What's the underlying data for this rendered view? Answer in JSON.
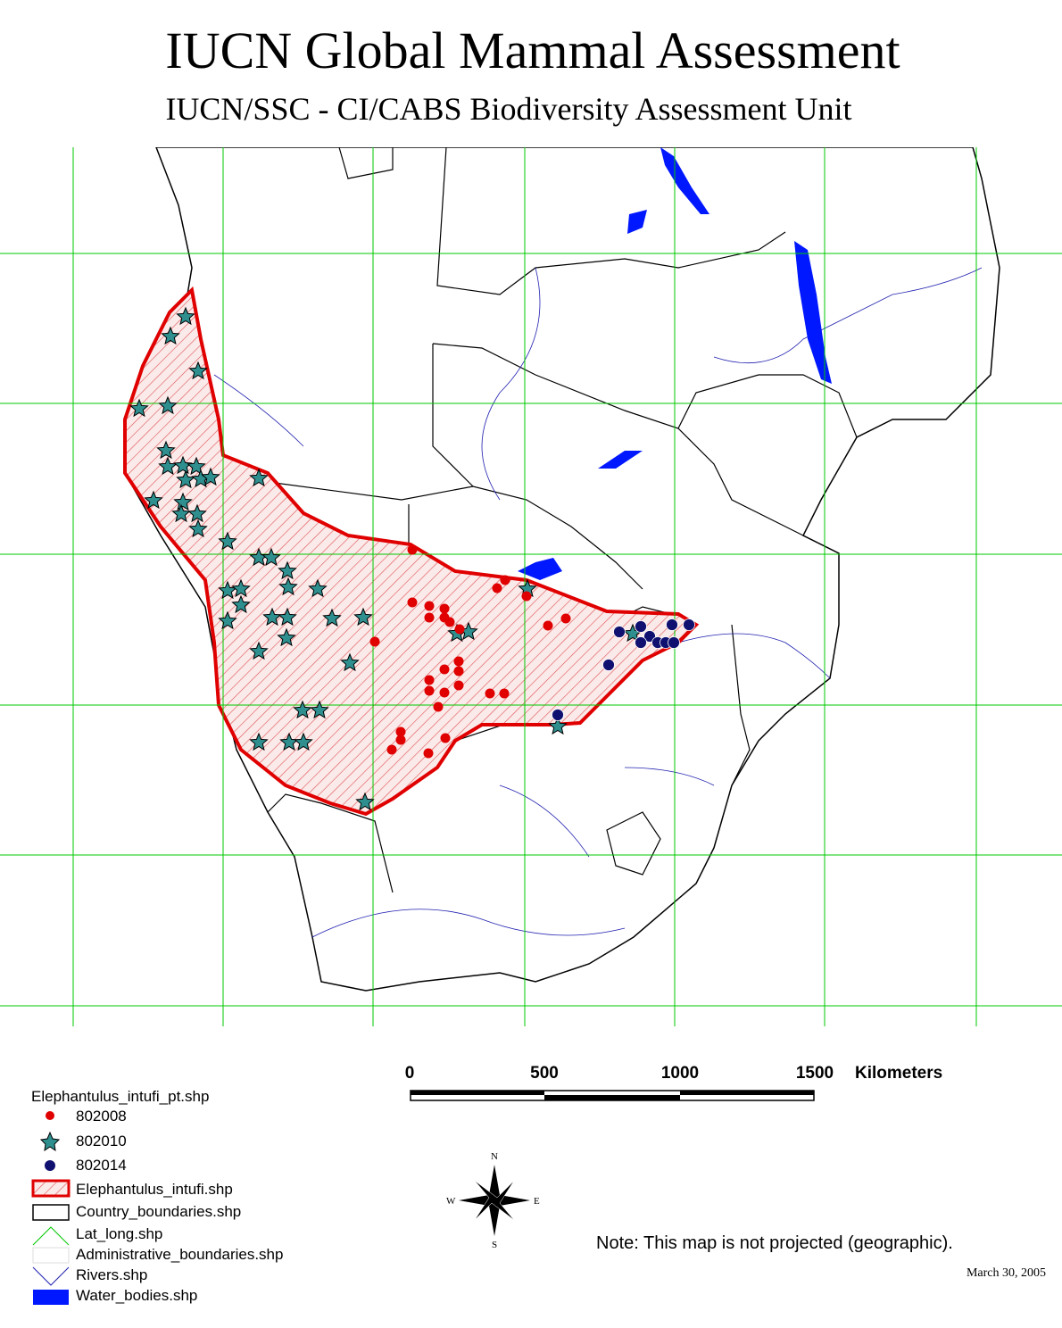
{
  "header": {
    "title": "IUCN Global Mammal Assessment",
    "subtitle": "IUCN/SSC - CI/CABS Biodiversity Assessment Unit"
  },
  "scale_bar": {
    "labels": [
      "0",
      "500",
      "1000",
      "1500"
    ],
    "unit": "Kilometers"
  },
  "legend": {
    "title": "Elephantulus_intufi_pt.shp",
    "items": [
      "802008",
      "802010",
      "802014",
      "Elephantulus_intufi.shp",
      "Country_boundaries.shp",
      "Lat_long.shp",
      "Administrative_boundaries.shp",
      "Rivers.shp",
      "Water_bodies.shp"
    ]
  },
  "compass": {
    "n": "N",
    "s": "S",
    "e": "E",
    "w": "W"
  },
  "note": "Note: This map is not projected (geographic).",
  "date": "March 30, 2005"
}
